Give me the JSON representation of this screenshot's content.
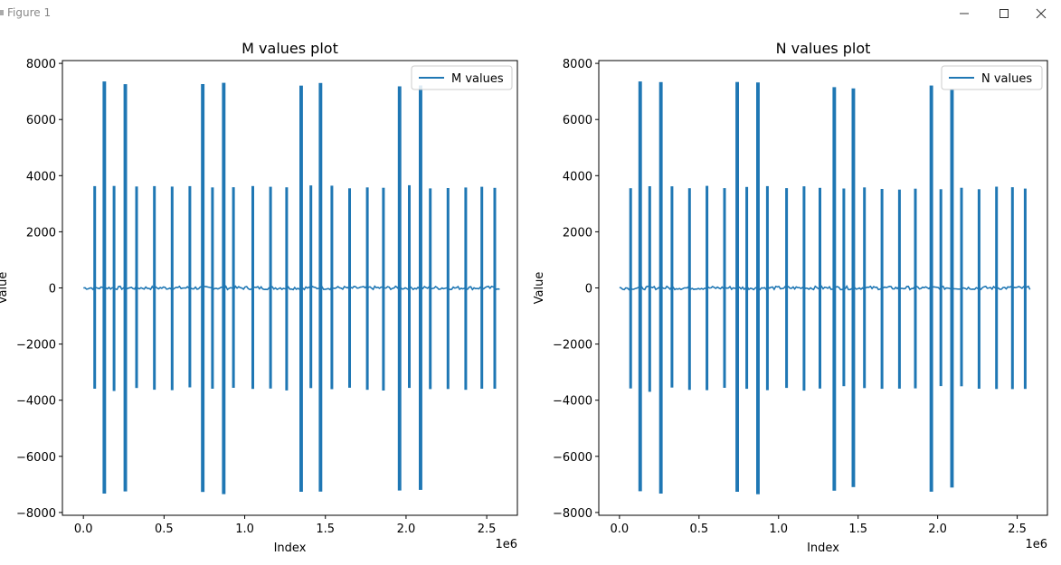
{
  "window": {
    "title": "Figure 1",
    "controls": {
      "minimize": "minimize-icon",
      "maximize": "maximize-icon",
      "close": "close-icon"
    }
  },
  "colors": {
    "series": "#1f77b4",
    "axes": "#000000",
    "background": "#ffffff"
  },
  "chart_data": [
    {
      "type": "line",
      "title": "M values plot",
      "xlabel": "Index",
      "ylabel": "Value",
      "x_offset_text": "1e6",
      "xlim": [
        -0.13,
        2.69
      ],
      "ylim": [
        -8100,
        8100
      ],
      "xticks": [
        0.0,
        0.5,
        1.0,
        1.5,
        2.0,
        2.5
      ],
      "xtick_labels": [
        "0.0",
        "0.5",
        "1.0",
        "1.5",
        "2.0",
        "2.5"
      ],
      "yticks": [
        -8000,
        -6000,
        -4000,
        -2000,
        0,
        2000,
        4000,
        6000,
        8000
      ],
      "ytick_labels": [
        "−8000",
        "−6000",
        "−4000",
        "−2000",
        "0",
        "2000",
        "4000",
        "6000",
        "8000"
      ],
      "legend": {
        "position": "top-right",
        "entries": [
          "M values"
        ]
      },
      "series": [
        {
          "name": "M values",
          "x_range": [
            0.0,
            2.58
          ],
          "baseline": 0,
          "bursts": [
            {
              "x": 0.07,
              "amp": 3600
            },
            {
              "x": 0.13,
              "amp": 7300
            },
            {
              "x": 0.19,
              "amp": 3650
            },
            {
              "x": 0.26,
              "amp": 7300
            },
            {
              "x": 0.33,
              "amp": 3600
            },
            {
              "x": 0.44,
              "amp": 3600
            },
            {
              "x": 0.55,
              "amp": 3600
            },
            {
              "x": 0.66,
              "amp": 3600
            },
            {
              "x": 0.74,
              "amp": 7250
            },
            {
              "x": 0.8,
              "amp": 3600
            },
            {
              "x": 0.87,
              "amp": 7300
            },
            {
              "x": 0.93,
              "amp": 3600
            },
            {
              "x": 1.05,
              "amp": 3600
            },
            {
              "x": 1.16,
              "amp": 3600
            },
            {
              "x": 1.26,
              "amp": 3600
            },
            {
              "x": 1.35,
              "amp": 7250
            },
            {
              "x": 1.41,
              "amp": 3600
            },
            {
              "x": 1.47,
              "amp": 7250
            },
            {
              "x": 1.54,
              "amp": 3600
            },
            {
              "x": 1.65,
              "amp": 3600
            },
            {
              "x": 1.76,
              "amp": 3600
            },
            {
              "x": 1.86,
              "amp": 3600
            },
            {
              "x": 1.96,
              "amp": 7200
            },
            {
              "x": 2.02,
              "amp": 3600
            },
            {
              "x": 2.09,
              "amp": 7200
            },
            {
              "x": 2.15,
              "amp": 3600
            },
            {
              "x": 2.26,
              "amp": 3600
            },
            {
              "x": 2.37,
              "amp": 3600
            },
            {
              "x": 2.47,
              "amp": 3600
            },
            {
              "x": 2.55,
              "amp": 3600
            }
          ]
        }
      ]
    },
    {
      "type": "line",
      "title": "N values plot",
      "xlabel": "Index",
      "ylabel": "Value",
      "x_offset_text": "1e6",
      "xlim": [
        -0.13,
        2.69
      ],
      "ylim": [
        -8100,
        8100
      ],
      "xticks": [
        0.0,
        0.5,
        1.0,
        1.5,
        2.0,
        2.5
      ],
      "xtick_labels": [
        "0.0",
        "0.5",
        "1.0",
        "1.5",
        "2.0",
        "2.5"
      ],
      "yticks": [
        -8000,
        -6000,
        -4000,
        -2000,
        0,
        2000,
        4000,
        6000,
        8000
      ],
      "ytick_labels": [
        "−8000",
        "−6000",
        "−4000",
        "−2000",
        "0",
        "2000",
        "4000",
        "6000",
        "8000"
      ],
      "legend": {
        "position": "top-right",
        "entries": [
          "N values"
        ]
      },
      "series": [
        {
          "name": "N values",
          "x_range": [
            0.0,
            2.58
          ],
          "baseline": 0,
          "bursts": [
            {
              "x": 0.07,
              "amp": 3600
            },
            {
              "x": 0.13,
              "amp": 7300
            },
            {
              "x": 0.19,
              "amp": 3650
            },
            {
              "x": 0.26,
              "amp": 7300
            },
            {
              "x": 0.33,
              "amp": 3600
            },
            {
              "x": 0.44,
              "amp": 3600
            },
            {
              "x": 0.55,
              "amp": 3600
            },
            {
              "x": 0.66,
              "amp": 3600
            },
            {
              "x": 0.74,
              "amp": 7300
            },
            {
              "x": 0.8,
              "amp": 3600
            },
            {
              "x": 0.87,
              "amp": 7300
            },
            {
              "x": 0.93,
              "amp": 3600
            },
            {
              "x": 1.05,
              "amp": 3600
            },
            {
              "x": 1.16,
              "amp": 3600
            },
            {
              "x": 1.26,
              "amp": 3600
            },
            {
              "x": 1.35,
              "amp": 7200
            },
            {
              "x": 1.41,
              "amp": 3550
            },
            {
              "x": 1.47,
              "amp": 7100
            },
            {
              "x": 1.54,
              "amp": 3550
            },
            {
              "x": 1.65,
              "amp": 3550
            },
            {
              "x": 1.76,
              "amp": 3550
            },
            {
              "x": 1.86,
              "amp": 3550
            },
            {
              "x": 1.96,
              "amp": 7200
            },
            {
              "x": 2.02,
              "amp": 3550
            },
            {
              "x": 2.09,
              "amp": 7100
            },
            {
              "x": 2.15,
              "amp": 3550
            },
            {
              "x": 2.26,
              "amp": 3550
            },
            {
              "x": 2.37,
              "amp": 3550
            },
            {
              "x": 2.47,
              "amp": 3550
            },
            {
              "x": 2.55,
              "amp": 3550
            }
          ]
        }
      ]
    }
  ]
}
